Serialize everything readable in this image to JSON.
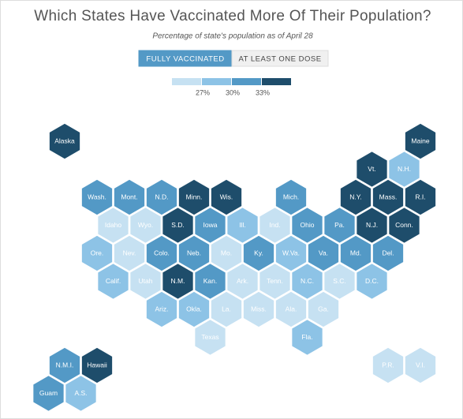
{
  "header": {
    "title": "Which States Have Vaccinated More Of Their Population?",
    "subtitle": "Percentage of state's population as of April 28"
  },
  "tabs": [
    {
      "label": "FULLY VACCINATED",
      "active": true
    },
    {
      "label": "AT LEAST ONE DOSE",
      "active": false
    }
  ],
  "legend": {
    "colors": [
      "#c6e1f2",
      "#8dc3e6",
      "#5399c6",
      "#1e4d6b"
    ],
    "labels": [
      "27%",
      "30%",
      "33%"
    ]
  },
  "hexes": [
    {
      "label": "Alaska",
      "bin": 3
    },
    {
      "label": "Maine",
      "bin": 3
    },
    {
      "label": "Vt.",
      "bin": 3
    },
    {
      "label": "N.H.",
      "bin": 1
    },
    {
      "label": "Wash.",
      "bin": 2
    },
    {
      "label": "Mont.",
      "bin": 2
    },
    {
      "label": "N.D.",
      "bin": 2
    },
    {
      "label": "Minn.",
      "bin": 3
    },
    {
      "label": "Wis.",
      "bin": 3
    },
    {
      "label": "Mich.",
      "bin": 2
    },
    {
      "label": "N.Y.",
      "bin": 3
    },
    {
      "label": "Mass.",
      "bin": 3
    },
    {
      "label": "R.I.",
      "bin": 3
    },
    {
      "label": "Idaho",
      "bin": 0
    },
    {
      "label": "Wyo.",
      "bin": 0
    },
    {
      "label": "S.D.",
      "bin": 3
    },
    {
      "label": "Iowa",
      "bin": 2
    },
    {
      "label": "Ill.",
      "bin": 1
    },
    {
      "label": "Ind.",
      "bin": 0
    },
    {
      "label": "Ohio",
      "bin": 2
    },
    {
      "label": "Pa.",
      "bin": 2
    },
    {
      "label": "N.J.",
      "bin": 3
    },
    {
      "label": "Conn.",
      "bin": 3
    },
    {
      "label": "Ore.",
      "bin": 1
    },
    {
      "label": "Nev.",
      "bin": 0
    },
    {
      "label": "Colo.",
      "bin": 2
    },
    {
      "label": "Neb.",
      "bin": 2
    },
    {
      "label": "Mo.",
      "bin": 0
    },
    {
      "label": "Ky.",
      "bin": 2
    },
    {
      "label": "W.Va.",
      "bin": 1
    },
    {
      "label": "Va.",
      "bin": 2
    },
    {
      "label": "Md.",
      "bin": 2
    },
    {
      "label": "Del.",
      "bin": 2
    },
    {
      "label": "Calif.",
      "bin": 1
    },
    {
      "label": "Utah",
      "bin": 0
    },
    {
      "label": "N.M.",
      "bin": 3
    },
    {
      "label": "Kan.",
      "bin": 2
    },
    {
      "label": "Ark.",
      "bin": 0
    },
    {
      "label": "Tenn.",
      "bin": 0
    },
    {
      "label": "N.C.",
      "bin": 1
    },
    {
      "label": "S.C.",
      "bin": 0
    },
    {
      "label": "D.C.",
      "bin": 1
    },
    {
      "label": "Ariz.",
      "bin": 1
    },
    {
      "label": "Okla.",
      "bin": 1
    },
    {
      "label": "La.",
      "bin": 0
    },
    {
      "label": "Miss.",
      "bin": 0
    },
    {
      "label": "Ala.",
      "bin": 0
    },
    {
      "label": "Ga.",
      "bin": 0
    },
    {
      "label": "Texas",
      "bin": 0
    },
    {
      "label": "Fla.",
      "bin": 1
    },
    {
      "label": "N.M.I.",
      "bin": 2
    },
    {
      "label": "Hawaii",
      "bin": 3
    },
    {
      "label": "Guam",
      "bin": 2
    },
    {
      "label": "A.S.",
      "bin": 1
    },
    {
      "label": "P.R.",
      "bin": 0
    },
    {
      "label": "V.I.",
      "bin": 0
    }
  ]
}
